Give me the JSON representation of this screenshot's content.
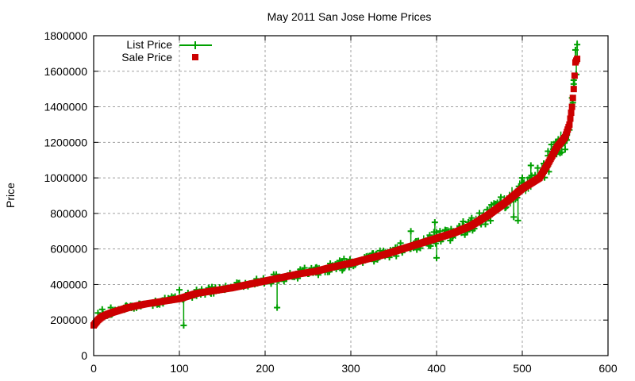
{
  "chart_data": {
    "type": "scatter",
    "title": "May 2011 San Jose Home Prices",
    "xlabel": "",
    "ylabel": "Price",
    "xlim": [
      0,
      600
    ],
    "ylim": [
      0,
      1800000
    ],
    "xticks": [
      0,
      100,
      200,
      300,
      400,
      500,
      600
    ],
    "yticks": [
      0,
      200000,
      400000,
      600000,
      800000,
      1000000,
      1200000,
      1400000,
      1600000,
      1800000
    ],
    "grid": true,
    "legend_position": "top-left",
    "series": [
      {
        "name": "List Price",
        "color": "#00a000",
        "marker": "plus-with-line",
        "x": [
          0,
          5,
          10,
          20,
          30,
          45,
          60,
          75,
          90,
          100,
          105,
          107,
          120,
          140,
          160,
          180,
          200,
          214,
          216,
          230,
          250,
          270,
          290,
          300,
          320,
          340,
          360,
          370,
          380,
          390,
          398,
          400,
          420,
          440,
          460,
          480,
          490,
          495,
          500,
          510,
          520,
          530,
          540,
          550,
          555,
          558,
          560,
          562,
          564
        ],
        "values": [
          180000,
          240000,
          260000,
          270000,
          260000,
          280000,
          290000,
          290000,
          310000,
          370000,
          170000,
          330000,
          370000,
          350000,
          380000,
          390000,
          420000,
          270000,
          440000,
          450000,
          460000,
          470000,
          480000,
          510000,
          560000,
          560000,
          580000,
          700000,
          620000,
          640000,
          750000,
          550000,
          700000,
          720000,
          780000,
          830000,
          780000,
          760000,
          1000000,
          1070000,
          1000000,
          1150000,
          1200000,
          1160000,
          1270000,
          1450000,
          1550000,
          1720000,
          1750000
        ]
      },
      {
        "name": "Sale Price",
        "color": "#cc0000",
        "marker": "square",
        "x": [
          0,
          5,
          10,
          20,
          40,
          60,
          80,
          100,
          120,
          140,
          160,
          180,
          200,
          220,
          240,
          260,
          280,
          300,
          320,
          340,
          360,
          380,
          400,
          420,
          440,
          460,
          480,
          500,
          520,
          530,
          540,
          550,
          555,
          558,
          560,
          562,
          564
        ],
        "values": [
          170000,
          200000,
          220000,
          240000,
          270000,
          290000,
          305000,
          320000,
          350000,
          365000,
          380000,
          400000,
          420000,
          440000,
          460000,
          475000,
          500000,
          520000,
          545000,
          570000,
          600000,
          630000,
          660000,
          690000,
          730000,
          790000,
          860000,
          940000,
          1000000,
          1080000,
          1170000,
          1230000,
          1300000,
          1400000,
          1500000,
          1650000,
          1670000
        ]
      }
    ]
  }
}
